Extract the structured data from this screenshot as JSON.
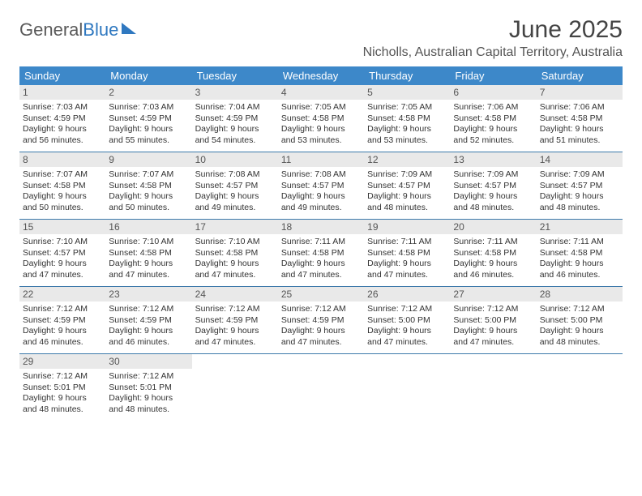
{
  "logo": {
    "part1": "General",
    "part2": "Blue"
  },
  "title": "June 2025",
  "location": "Nicholls, Australian Capital Territory, Australia",
  "colors": {
    "header_bg": "#3d88c9",
    "header_fg": "#ffffff",
    "row_divider": "#3d7aab",
    "daynum_bg": "#e9e9e9",
    "logo_blue": "#2f78c0",
    "text": "#333333"
  },
  "day_names": [
    "Sunday",
    "Monday",
    "Tuesday",
    "Wednesday",
    "Thursday",
    "Friday",
    "Saturday"
  ],
  "weeks": [
    [
      {
        "n": "1",
        "sr": "Sunrise: 7:03 AM",
        "ss": "Sunset: 4:59 PM",
        "d1": "Daylight: 9 hours",
        "d2": "and 56 minutes."
      },
      {
        "n": "2",
        "sr": "Sunrise: 7:03 AM",
        "ss": "Sunset: 4:59 PM",
        "d1": "Daylight: 9 hours",
        "d2": "and 55 minutes."
      },
      {
        "n": "3",
        "sr": "Sunrise: 7:04 AM",
        "ss": "Sunset: 4:59 PM",
        "d1": "Daylight: 9 hours",
        "d2": "and 54 minutes."
      },
      {
        "n": "4",
        "sr": "Sunrise: 7:05 AM",
        "ss": "Sunset: 4:58 PM",
        "d1": "Daylight: 9 hours",
        "d2": "and 53 minutes."
      },
      {
        "n": "5",
        "sr": "Sunrise: 7:05 AM",
        "ss": "Sunset: 4:58 PM",
        "d1": "Daylight: 9 hours",
        "d2": "and 53 minutes."
      },
      {
        "n": "6",
        "sr": "Sunrise: 7:06 AM",
        "ss": "Sunset: 4:58 PM",
        "d1": "Daylight: 9 hours",
        "d2": "and 52 minutes."
      },
      {
        "n": "7",
        "sr": "Sunrise: 7:06 AM",
        "ss": "Sunset: 4:58 PM",
        "d1": "Daylight: 9 hours",
        "d2": "and 51 minutes."
      }
    ],
    [
      {
        "n": "8",
        "sr": "Sunrise: 7:07 AM",
        "ss": "Sunset: 4:58 PM",
        "d1": "Daylight: 9 hours",
        "d2": "and 50 minutes."
      },
      {
        "n": "9",
        "sr": "Sunrise: 7:07 AM",
        "ss": "Sunset: 4:58 PM",
        "d1": "Daylight: 9 hours",
        "d2": "and 50 minutes."
      },
      {
        "n": "10",
        "sr": "Sunrise: 7:08 AM",
        "ss": "Sunset: 4:57 PM",
        "d1": "Daylight: 9 hours",
        "d2": "and 49 minutes."
      },
      {
        "n": "11",
        "sr": "Sunrise: 7:08 AM",
        "ss": "Sunset: 4:57 PM",
        "d1": "Daylight: 9 hours",
        "d2": "and 49 minutes."
      },
      {
        "n": "12",
        "sr": "Sunrise: 7:09 AM",
        "ss": "Sunset: 4:57 PM",
        "d1": "Daylight: 9 hours",
        "d2": "and 48 minutes."
      },
      {
        "n": "13",
        "sr": "Sunrise: 7:09 AM",
        "ss": "Sunset: 4:57 PM",
        "d1": "Daylight: 9 hours",
        "d2": "and 48 minutes."
      },
      {
        "n": "14",
        "sr": "Sunrise: 7:09 AM",
        "ss": "Sunset: 4:57 PM",
        "d1": "Daylight: 9 hours",
        "d2": "and 48 minutes."
      }
    ],
    [
      {
        "n": "15",
        "sr": "Sunrise: 7:10 AM",
        "ss": "Sunset: 4:57 PM",
        "d1": "Daylight: 9 hours",
        "d2": "and 47 minutes."
      },
      {
        "n": "16",
        "sr": "Sunrise: 7:10 AM",
        "ss": "Sunset: 4:58 PM",
        "d1": "Daylight: 9 hours",
        "d2": "and 47 minutes."
      },
      {
        "n": "17",
        "sr": "Sunrise: 7:10 AM",
        "ss": "Sunset: 4:58 PM",
        "d1": "Daylight: 9 hours",
        "d2": "and 47 minutes."
      },
      {
        "n": "18",
        "sr": "Sunrise: 7:11 AM",
        "ss": "Sunset: 4:58 PM",
        "d1": "Daylight: 9 hours",
        "d2": "and 47 minutes."
      },
      {
        "n": "19",
        "sr": "Sunrise: 7:11 AM",
        "ss": "Sunset: 4:58 PM",
        "d1": "Daylight: 9 hours",
        "d2": "and 47 minutes."
      },
      {
        "n": "20",
        "sr": "Sunrise: 7:11 AM",
        "ss": "Sunset: 4:58 PM",
        "d1": "Daylight: 9 hours",
        "d2": "and 46 minutes."
      },
      {
        "n": "21",
        "sr": "Sunrise: 7:11 AM",
        "ss": "Sunset: 4:58 PM",
        "d1": "Daylight: 9 hours",
        "d2": "and 46 minutes."
      }
    ],
    [
      {
        "n": "22",
        "sr": "Sunrise: 7:12 AM",
        "ss": "Sunset: 4:59 PM",
        "d1": "Daylight: 9 hours",
        "d2": "and 46 minutes."
      },
      {
        "n": "23",
        "sr": "Sunrise: 7:12 AM",
        "ss": "Sunset: 4:59 PM",
        "d1": "Daylight: 9 hours",
        "d2": "and 46 minutes."
      },
      {
        "n": "24",
        "sr": "Sunrise: 7:12 AM",
        "ss": "Sunset: 4:59 PM",
        "d1": "Daylight: 9 hours",
        "d2": "and 47 minutes."
      },
      {
        "n": "25",
        "sr": "Sunrise: 7:12 AM",
        "ss": "Sunset: 4:59 PM",
        "d1": "Daylight: 9 hours",
        "d2": "and 47 minutes."
      },
      {
        "n": "26",
        "sr": "Sunrise: 7:12 AM",
        "ss": "Sunset: 5:00 PM",
        "d1": "Daylight: 9 hours",
        "d2": "and 47 minutes."
      },
      {
        "n": "27",
        "sr": "Sunrise: 7:12 AM",
        "ss": "Sunset: 5:00 PM",
        "d1": "Daylight: 9 hours",
        "d2": "and 47 minutes."
      },
      {
        "n": "28",
        "sr": "Sunrise: 7:12 AM",
        "ss": "Sunset: 5:00 PM",
        "d1": "Daylight: 9 hours",
        "d2": "and 48 minutes."
      }
    ],
    [
      {
        "n": "29",
        "sr": "Sunrise: 7:12 AM",
        "ss": "Sunset: 5:01 PM",
        "d1": "Daylight: 9 hours",
        "d2": "and 48 minutes."
      },
      {
        "n": "30",
        "sr": "Sunrise: 7:12 AM",
        "ss": "Sunset: 5:01 PM",
        "d1": "Daylight: 9 hours",
        "d2": "and 48 minutes."
      },
      {
        "empty": true
      },
      {
        "empty": true
      },
      {
        "empty": true
      },
      {
        "empty": true
      },
      {
        "empty": true
      }
    ]
  ]
}
